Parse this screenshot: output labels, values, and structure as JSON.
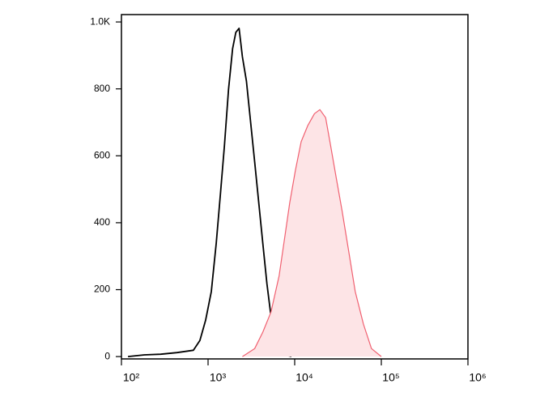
{
  "chart_data": {
    "type": "histogram-line",
    "xscale": "log",
    "xlim": [
      100,
      1000000
    ],
    "xticks": [
      {
        "value": 100,
        "label": "10²"
      },
      {
        "value": 1000,
        "label": "10³"
      },
      {
        "value": 10000,
        "label": "10⁴"
      },
      {
        "value": 100000,
        "label": "10⁵"
      },
      {
        "value": 1000000,
        "label": "10⁶"
      }
    ],
    "ylim": [
      -7,
      1022
    ],
    "yticks": [
      0,
      200,
      400,
      600,
      800,
      {
        "value": 1000,
        "label": "1.0K"
      }
    ],
    "series": [
      {
        "color": "#000000",
        "x": [
          119,
          184,
          284,
          439,
          677,
          805,
          937,
          1091,
          1242,
          1386,
          1545,
          1722,
          1920,
          2093,
          2282,
          2488,
          2774,
          3094,
          3451,
          3847,
          4287,
          4775,
          5322,
          6194,
          7379,
          9163
        ],
        "values": [
          0,
          5,
          7,
          12,
          19,
          48,
          109,
          194,
          339,
          484,
          630,
          799,
          920,
          969,
          981,
          896,
          823,
          702,
          581,
          460,
          339,
          218,
          121,
          48,
          7,
          0
        ]
      },
      {
        "color": "#f06070",
        "fill": "#fde4e6",
        "x": [
          2488,
          3451,
          4287,
          5322,
          6615,
          7742,
          8777,
          10190,
          11870,
          14150,
          16890,
          19530,
          22740,
          25990,
          30250,
          35190,
          41980,
          49960,
          62100,
          76900,
          99900
        ],
        "values": [
          0,
          24,
          73,
          133,
          242,
          363,
          460,
          557,
          642,
          690,
          726,
          738,
          714,
          630,
          533,
          436,
          315,
          194,
          97,
          24,
          0
        ]
      }
    ]
  }
}
